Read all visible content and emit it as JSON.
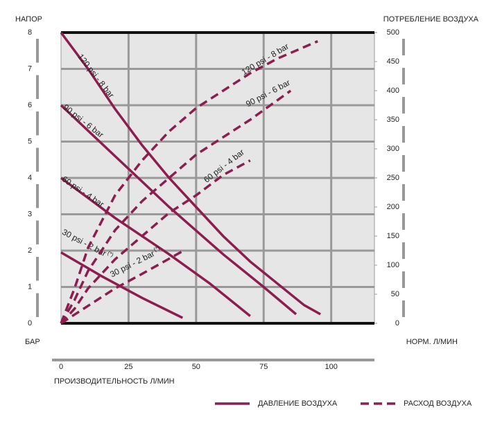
{
  "chart_data": {
    "type": "line",
    "y_title": "НАПОР",
    "y_unit": "БАР",
    "y2_title": "ПОТРЕБЛЕНИЕ ВОЗДУХА",
    "y2_unit": "НОРМ. Л/МИН",
    "x_title": "ПРОИЗВОДИТЕЛЬНОСТЬ  Л/МИН",
    "xlim": [
      0,
      116
    ],
    "xticks": [
      0,
      25,
      50,
      75,
      100
    ],
    "ylim": [
      0,
      8
    ],
    "yticks": [
      0,
      1,
      2,
      3,
      4,
      5,
      6,
      7,
      8
    ],
    "y2lim": [
      0,
      500
    ],
    "y2ticks": [
      0,
      50,
      100,
      150,
      200,
      250,
      300,
      350,
      400,
      450,
      500
    ],
    "grid": true,
    "legend": [
      {
        "label": "ДАВЛЕНИЕ ВОЗДУХА",
        "style": "solid"
      },
      {
        "label": "РАСХОД ВОЗДУХА",
        "style": "dashed"
      }
    ],
    "series": [
      {
        "name": "120 psi - 8 bar",
        "color": "#8c1d4e",
        "style": "solid",
        "x": [
          0,
          10,
          20,
          30,
          40,
          50,
          60,
          70,
          80,
          90,
          96
        ],
        "values": [
          8,
          7,
          5.9,
          4.9,
          4.0,
          3.2,
          2.4,
          1.7,
          1.1,
          0.5,
          0.25
        ]
      },
      {
        "name": "90 psi - 6 bar",
        "color": "#8c1d4e",
        "style": "solid",
        "x": [
          0,
          20,
          40,
          60,
          75,
          87
        ],
        "values": [
          6,
          4.6,
          3.2,
          1.9,
          1.0,
          0.25
        ]
      },
      {
        "name": "60 psi - 4 bar",
        "color": "#8c1d4e",
        "style": "solid",
        "x": [
          0,
          20,
          40,
          55,
          70
        ],
        "values": [
          4,
          2.9,
          1.9,
          1.1,
          0.2
        ]
      },
      {
        "name": "30 psi - 2 bar",
        "note": "(*)",
        "color": "#8c1d4e",
        "style": "solid",
        "x": [
          0,
          15,
          30,
          45
        ],
        "values": [
          1.95,
          1.3,
          0.7,
          0.15
        ]
      },
      {
        "name": "120 psi - 8 bar",
        "color": "#8c1d4e",
        "style": "dashed",
        "axis": "y2",
        "x": [
          0,
          5,
          10,
          20,
          30,
          40,
          50,
          60,
          70,
          80,
          95
        ],
        "values": [
          0,
          60,
          130,
          220,
          280,
          330,
          370,
          400,
          430,
          455,
          485
        ]
      },
      {
        "name": "90 psi - 6 bar",
        "color": "#8c1d4e",
        "style": "dashed",
        "axis": "y2",
        "x": [
          0,
          5,
          10,
          20,
          30,
          40,
          50,
          60,
          70,
          85
        ],
        "values": [
          0,
          40,
          90,
          160,
          210,
          250,
          290,
          320,
          350,
          400
        ]
      },
      {
        "name": "60 psi - 4 bar",
        "color": "#8c1d4e",
        "style": "dashed",
        "axis": "y2",
        "x": [
          0,
          5,
          10,
          20,
          30,
          40,
          50,
          60,
          70
        ],
        "values": [
          0,
          25,
          60,
          110,
          150,
          190,
          220,
          255,
          280
        ]
      },
      {
        "name": "30 psi - 2 bar",
        "note": "(*)",
        "color": "#8c1d4e",
        "style": "dashed",
        "axis": "y2",
        "x": [
          0,
          10,
          20,
          30,
          45
        ],
        "values": [
          0,
          30,
          60,
          85,
          124
        ]
      }
    ]
  }
}
